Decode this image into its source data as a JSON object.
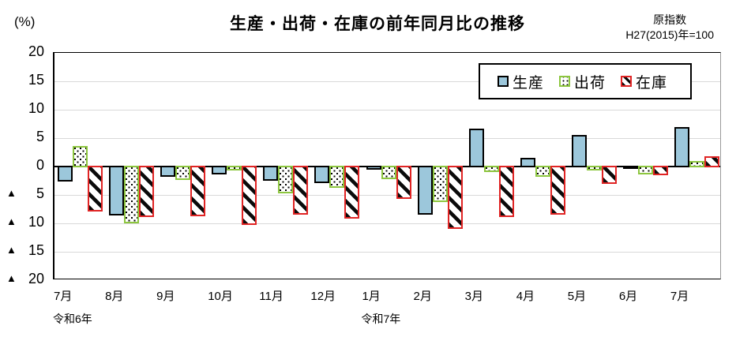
{
  "header": {
    "percent_label": "(%)",
    "title": "生産・出荷・在庫の前年同月比の推移",
    "index_note_line1": "原指数",
    "index_note_line2": "H27(2015)年=100"
  },
  "chart_data": {
    "type": "bar",
    "title": "生産・出荷・在庫の前年同月比の推移",
    "ylabel": "(%)",
    "ylim": [
      -20,
      20
    ],
    "ytick_step": 5,
    "negative_prefix": "▲",
    "grid": true,
    "legend_position": "top-right",
    "categories": [
      "7月",
      "8月",
      "9月",
      "10月",
      "11月",
      "12月",
      "1月",
      "2月",
      "3月",
      "4月",
      "5月",
      "6月",
      "7月"
    ],
    "era_labels": [
      {
        "text": "令和6年",
        "month_index": 0
      },
      {
        "text": "令和7年",
        "month_index": 6
      }
    ],
    "series": [
      {
        "name": "生産",
        "style": "seisan",
        "fill_color": "#9cc7db",
        "border_color": "#000000",
        "pattern": "solid",
        "values": [
          -2.5,
          -8.5,
          -1.6,
          -1.2,
          -2.3,
          -2.8,
          -0.4,
          -8.3,
          6.5,
          1.4,
          5.4,
          -0.3,
          6.8
        ]
      },
      {
        "name": "出荷",
        "style": "shukka",
        "fill_color": "#ffffff",
        "border_color": "#8dc63f",
        "pattern": "dots",
        "values": [
          3.5,
          -9.8,
          -2.2,
          -0.5,
          -4.6,
          -3.6,
          -2.1,
          -6.1,
          -0.8,
          -1.6,
          -0.6,
          -1.3,
          0.8
        ]
      },
      {
        "name": "在庫",
        "style": "zaiko",
        "fill_color": "#ffffff",
        "border_color": "#e02424",
        "pattern": "diagonal-stripes",
        "values": [
          -7.8,
          -8.8,
          -8.6,
          -10.2,
          -8.4,
          -9.0,
          -5.5,
          -10.9,
          -8.8,
          -8.3,
          -2.9,
          -1.4,
          1.7
        ]
      }
    ],
    "gridline_color": "#d9d9d9"
  }
}
